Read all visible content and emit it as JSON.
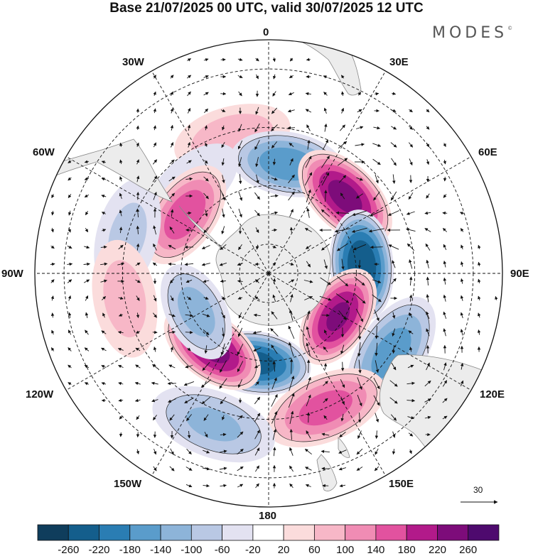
{
  "title": "Base 21/07/2025 00 UTC, valid 30/07/2025 12 UTC",
  "brand": "MODES",
  "brand_mark": "©",
  "longitude_labels": {
    "lon_0": "0",
    "lon_30e": "30E",
    "lon_60e": "60E",
    "lon_90e": "90E",
    "lon_120e": "120E",
    "lon_150e": "150E",
    "lon_180": "180",
    "lon_150w": "150W",
    "lon_120w": "120W",
    "lon_90w": "90W",
    "lon_60w": "60W",
    "lon_30w": "30W"
  },
  "vector_scale_label": "30",
  "colorbar": {
    "ticks": [
      "-260",
      "-220",
      "-180",
      "-140",
      "-100",
      "-60",
      "-20",
      "20",
      "60",
      "100",
      "140",
      "180",
      "220",
      "260"
    ],
    "colors": [
      "#0f3d5c",
      "#145e8c",
      "#2a7db3",
      "#5a9ccb",
      "#8db4d9",
      "#b9c8e4",
      "#e3e2f1",
      "#ffffff",
      "#fbdcdc",
      "#f7b7c7",
      "#f08cb4",
      "#e2529f",
      "#b21a8a",
      "#7d0c7a",
      "#4e0a6e"
    ]
  },
  "anomalies": [
    {
      "name": "high-30w",
      "lon": -15,
      "lat": -42,
      "value": 90
    },
    {
      "name": "low-40w",
      "lon": -40,
      "lat": -50,
      "value": -60
    },
    {
      "name": "high-60w",
      "lon": -55,
      "lat": -55,
      "value": 170
    },
    {
      "name": "low-75w",
      "lon": -75,
      "lat": -40,
      "value": -70
    },
    {
      "name": "low-10e",
      "lon": 10,
      "lat": -52,
      "value": -170
    },
    {
      "name": "high-45e",
      "lon": 45,
      "lat": -53,
      "value": 240
    },
    {
      "name": "low-85e",
      "lon": 85,
      "lat": -58,
      "value": -260
    },
    {
      "name": "high-120e",
      "lon": 122,
      "lat": -62,
      "value": 230
    },
    {
      "name": "low-120e-outer",
      "lon": 123,
      "lat": -40,
      "value": -160
    },
    {
      "name": "low-170w",
      "lon": -172,
      "lat": -59,
      "value": -240
    },
    {
      "name": "high-155e",
      "lon": 157,
      "lat": -40,
      "value": 160
    },
    {
      "name": "high-150w",
      "lon": -143,
      "lat": -58,
      "value": 240
    },
    {
      "name": "low-120w",
      "lon": -118,
      "lat": -62,
      "value": -120
    },
    {
      "name": "high-100w",
      "lon": -100,
      "lat": -40,
      "value": 80
    },
    {
      "name": "low-165w",
      "lon": -160,
      "lat": -35,
      "value": -110
    }
  ]
}
